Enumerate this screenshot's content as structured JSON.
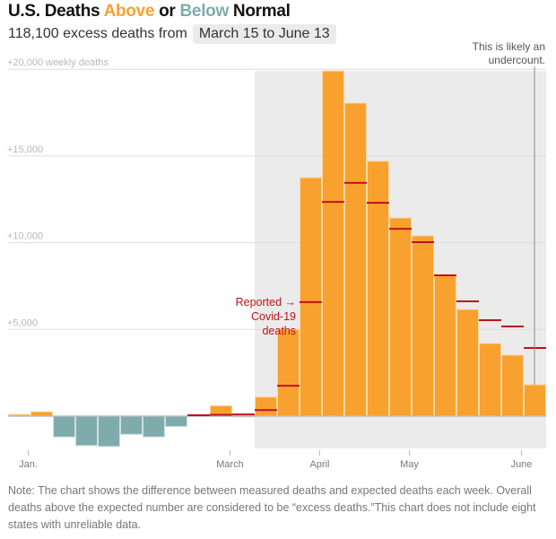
{
  "header": {
    "title_prefix": "U.S. Deaths ",
    "title_above": "Above",
    "title_mid": " or ",
    "title_below": "Below",
    "title_suffix": " Normal",
    "subtitle": "118,100 excess deaths from",
    "date_range": "March 15 to June 13"
  },
  "colors": {
    "above": "#f9a12e",
    "below": "#7fabad",
    "reported": "#c0121a",
    "shade": "#ebebeb"
  },
  "note": "Note: The chart shows the difference between measured deaths and expected deaths each week. Overall deaths above the expected number are considered to be “excess deaths.”This chart does not include eight states with unreliable data.",
  "chart_data": {
    "type": "bar",
    "title": "U.S. Deaths Above or Below Normal",
    "ylabel": "weekly deaths",
    "ylim": [
      -2500,
      20000
    ],
    "yticks": [
      {
        "value": 20000,
        "label": "+20,000 weekly deaths"
      },
      {
        "value": 15000,
        "label": "+15,000"
      },
      {
        "value": 10000,
        "label": "+10,000"
      },
      {
        "value": 5000,
        "label": "+5,000"
      }
    ],
    "xticks": [
      {
        "week": 0.5,
        "label": "Jan."
      },
      {
        "week": 9.5,
        "label": "March"
      },
      {
        "week": 13.5,
        "label": "April"
      },
      {
        "week": 17.5,
        "label": "May"
      },
      {
        "week": 22.5,
        "label": "June"
      }
    ],
    "grid": true,
    "legend": "none",
    "series": [
      {
        "name": "Excess deaths",
        "values": [
          100,
          250,
          -1200,
          -1700,
          -1750,
          -1050,
          -1200,
          -600,
          0,
          600,
          -50,
          1100,
          5000,
          13750,
          19900,
          18050,
          14700,
          11430,
          10400,
          8170,
          6150,
          4190,
          3520,
          1810
        ]
      },
      {
        "name": "Reported Covid-19 deaths",
        "values": [
          null,
          null,
          null,
          null,
          null,
          null,
          null,
          null,
          50,
          80,
          100,
          350,
          1750,
          6570,
          12350,
          13450,
          12300,
          10800,
          10030,
          8120,
          6620,
          5530,
          5170,
          3930
        ]
      }
    ],
    "highlight_range": {
      "from_week": 11,
      "to_week": 23,
      "label": "March 15 to June 13"
    },
    "annotations": [
      {
        "text_lines": [
          "Reported →",
          "Covid-19",
          "deaths"
        ],
        "points_to_week": 13
      },
      {
        "text_lines": [
          "This is likely an",
          "undercount."
        ],
        "marker_week": 23.5
      }
    ]
  }
}
